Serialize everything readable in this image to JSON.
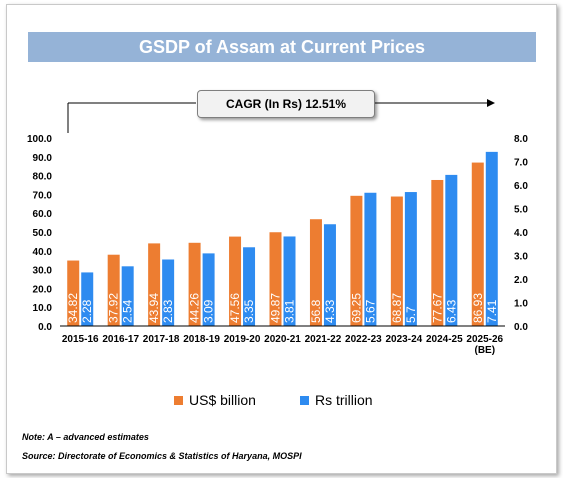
{
  "title": "GSDP of Assam at Current Prices",
  "cagr_label": "CAGR (In Rs) 12.51%",
  "note": "Note: A – advanced estimates",
  "source": "Source: Directorate of Economics & Statistics of Haryana, MOSPI",
  "colors": {
    "usd": "#ed7d31",
    "inr": "#2e8bf0",
    "title_bg": "#95b3d7"
  },
  "chart_data": {
    "type": "bar",
    "title": "GSDP of Assam at Current Prices",
    "categories": [
      "2015-16",
      "2016-17",
      "2017-18",
      "2018-19",
      "2019-20",
      "2020-21",
      "2021-22",
      "2022-23",
      "2023-24",
      "2024-25",
      "2025-26 (BE)"
    ],
    "series": [
      {
        "name": "US$ billion",
        "axis": "left",
        "values": [
          34.82,
          37.92,
          43.94,
          44.26,
          47.56,
          49.87,
          56.8,
          69.25,
          68.87,
          77.67,
          86.93
        ]
      },
      {
        "name": "Rs trillion",
        "axis": "right",
        "values": [
          2.28,
          2.54,
          2.83,
          3.09,
          3.35,
          3.81,
          4.33,
          5.67,
          5.7,
          6.43,
          7.41
        ]
      }
    ],
    "y_left": {
      "min": 0,
      "max": 100,
      "ticks": [
        "0.0",
        "10.0",
        "20.0",
        "30.0",
        "40.0",
        "50.0",
        "60.0",
        "70.0",
        "80.0",
        "90.0",
        "100.0"
      ]
    },
    "y_right": {
      "min": 0,
      "max": 8,
      "ticks": [
        "0.0",
        "1.0",
        "2.0",
        "3.0",
        "4.0",
        "5.0",
        "6.0",
        "7.0",
        "8.0"
      ]
    },
    "grid": false,
    "legend": "bottom"
  }
}
